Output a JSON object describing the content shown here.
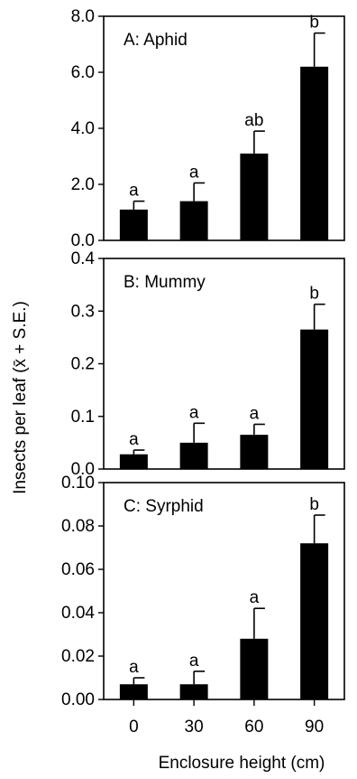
{
  "chart_data": {
    "type": "bar",
    "ylabel": "Insects per leaf (x̄ + S.E.)",
    "xlabel": "Enclosure height (cm)",
    "categories": [
      "0",
      "30",
      "60",
      "90"
    ],
    "bar_color": "#000000",
    "panels": [
      {
        "title": "A: Aphid",
        "ylim": [
          0,
          8.0
        ],
        "yticks": [
          "0.0",
          "2.0",
          "4.0",
          "6.0",
          "8.0"
        ],
        "values": [
          1.1,
          1.4,
          3.1,
          6.2
        ],
        "errors": [
          0.3,
          0.65,
          0.8,
          1.2
        ],
        "letters": [
          "a",
          "a",
          "ab",
          "b"
        ]
      },
      {
        "title": "B: Mummy",
        "ylim": [
          0,
          0.4
        ],
        "yticks": [
          "0.0",
          "0.1",
          "0.2",
          "0.3",
          "0.4"
        ],
        "values": [
          0.028,
          0.05,
          0.065,
          0.265
        ],
        "errors": [
          0.008,
          0.037,
          0.02,
          0.048
        ],
        "letters": [
          "a",
          "a",
          "a",
          "b"
        ]
      },
      {
        "title": "C: Syrphid",
        "ylim": [
          0,
          0.1
        ],
        "yticks": [
          "0.00",
          "0.02",
          "0.04",
          "0.06",
          "0.08",
          "0.10"
        ],
        "values": [
          0.007,
          0.007,
          0.028,
          0.072
        ],
        "errors": [
          0.003,
          0.006,
          0.014,
          0.013
        ],
        "letters": [
          "a",
          "a",
          "a",
          "b"
        ]
      }
    ]
  }
}
